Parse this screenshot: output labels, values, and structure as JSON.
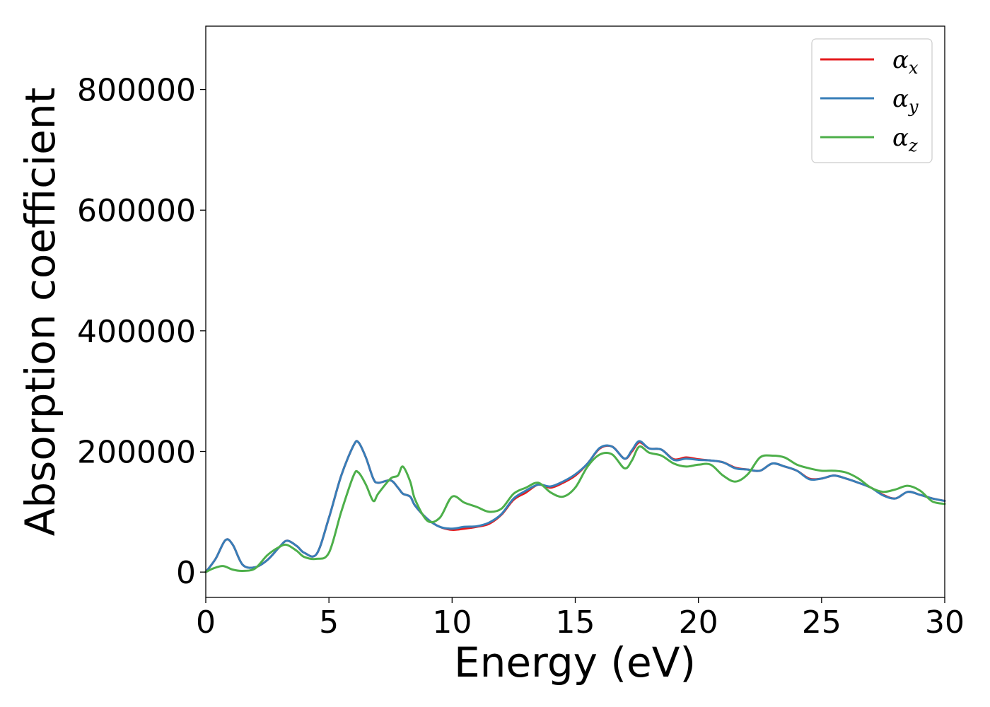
{
  "chart_data": {
    "type": "line",
    "xlabel": "Energy (eV)",
    "ylabel": "Absorption coefficient",
    "xlim": [
      0,
      30
    ],
    "ylim": [
      -42000,
      905000
    ],
    "xticks": [
      0,
      5,
      10,
      15,
      20,
      25,
      30
    ],
    "yticks": [
      0,
      200000,
      400000,
      600000,
      800000
    ],
    "xtick_labels": [
      "0",
      "5",
      "10",
      "15",
      "20",
      "25",
      "30"
    ],
    "ytick_labels": [
      "0",
      "200000",
      "400000",
      "600000",
      "800000"
    ],
    "grid": false,
    "legend_position": "top-right",
    "series": [
      {
        "name": "αx",
        "symbol": "α",
        "sub": "x",
        "color": "#e41a1c",
        "x": [
          0,
          0.4,
          0.8,
          1.1,
          1.5,
          2.0,
          2.5,
          3.0,
          3.3,
          3.7,
          4.0,
          4.5,
          5.0,
          5.5,
          6.0,
          6.2,
          6.5,
          6.8,
          7.0,
          7.5,
          7.8,
          8.0,
          8.3,
          8.5,
          9.0,
          9.5,
          10.0,
          10.5,
          11.0,
          11.5,
          12.0,
          12.5,
          13.0,
          13.5,
          14.0,
          14.5,
          15.0,
          15.5,
          16.0,
          16.5,
          17.0,
          17.3,
          17.6,
          18.0,
          18.5,
          19.0,
          19.5,
          20.0,
          20.5,
          21.0,
          21.5,
          22.0,
          22.5,
          23.0,
          23.5,
          24.0,
          24.5,
          25.0,
          25.5,
          26.0,
          26.5,
          27.0,
          27.5,
          28.0,
          28.5,
          29.0,
          29.5,
          30.0
        ],
        "y": [
          0,
          22000,
          53000,
          45000,
          12000,
          8000,
          20000,
          42000,
          52000,
          43000,
          32000,
          30000,
          90000,
          160000,
          210000,
          215000,
          190000,
          155000,
          148000,
          152000,
          140000,
          130000,
          125000,
          110000,
          88000,
          75000,
          70000,
          72000,
          75000,
          80000,
          95000,
          120000,
          132000,
          145000,
          140000,
          148000,
          160000,
          180000,
          205000,
          208000,
          188000,
          200000,
          215000,
          205000,
          203000,
          187000,
          190000,
          187000,
          185000,
          182000,
          173000,
          170000,
          168000,
          180000,
          175000,
          168000,
          155000,
          155000,
          160000,
          155000,
          148000,
          140000,
          128000,
          122000,
          133000,
          128000,
          122000,
          118000
        ]
      },
      {
        "name": "αy",
        "symbol": "α",
        "sub": "y",
        "color": "#377eb8",
        "x": [
          0,
          0.4,
          0.8,
          1.1,
          1.5,
          2.0,
          2.5,
          3.0,
          3.3,
          3.7,
          4.0,
          4.5,
          5.0,
          5.5,
          6.0,
          6.2,
          6.5,
          6.8,
          7.0,
          7.5,
          7.8,
          8.0,
          8.3,
          8.5,
          9.0,
          9.5,
          10.0,
          10.5,
          11.0,
          11.5,
          12.0,
          12.5,
          13.0,
          13.5,
          14.0,
          14.5,
          15.0,
          15.5,
          16.0,
          16.5,
          17.0,
          17.3,
          17.6,
          18.0,
          18.5,
          19.0,
          19.5,
          20.0,
          20.5,
          21.0,
          21.5,
          22.0,
          22.5,
          23.0,
          23.5,
          24.0,
          24.5,
          25.0,
          25.5,
          26.0,
          26.5,
          27.0,
          27.5,
          28.0,
          28.5,
          29.0,
          29.5,
          30.0
        ],
        "y": [
          0,
          22000,
          53000,
          45000,
          12000,
          8000,
          20000,
          42000,
          52000,
          43000,
          32000,
          30000,
          90000,
          160000,
          210000,
          215000,
          190000,
          155000,
          148000,
          152000,
          140000,
          130000,
          125000,
          110000,
          88000,
          75000,
          72000,
          75000,
          76000,
          82000,
          96000,
          122000,
          135000,
          145000,
          142000,
          150000,
          162000,
          180000,
          206000,
          208000,
          188000,
          202000,
          217000,
          205000,
          203000,
          186000,
          188000,
          186000,
          185000,
          182000,
          172000,
          170000,
          168000,
          180000,
          175000,
          168000,
          154000,
          155000,
          160000,
          155000,
          148000,
          140000,
          127000,
          122000,
          133000,
          128000,
          122000,
          118000
        ]
      },
      {
        "name": "αz",
        "symbol": "α",
        "sub": "z",
        "color": "#4daf4a",
        "x": [
          0,
          0.3,
          0.7,
          1.1,
          1.5,
          2.0,
          2.5,
          3.0,
          3.3,
          3.7,
          4.0,
          4.5,
          5.0,
          5.5,
          6.0,
          6.2,
          6.5,
          6.8,
          7.0,
          7.5,
          7.8,
          8.0,
          8.3,
          8.5,
          9.0,
          9.5,
          10.0,
          10.5,
          11.0,
          11.5,
          12.0,
          12.5,
          13.0,
          13.5,
          14.0,
          14.5,
          15.0,
          15.5,
          16.0,
          16.5,
          17.0,
          17.3,
          17.6,
          18.0,
          18.5,
          19.0,
          19.5,
          20.0,
          20.5,
          21.0,
          21.5,
          22.0,
          22.5,
          23.0,
          23.5,
          24.0,
          24.5,
          25.0,
          25.5,
          26.0,
          26.5,
          27.0,
          27.5,
          28.0,
          28.5,
          29.0,
          29.5,
          30.0
        ],
        "y": [
          0,
          6000,
          10000,
          4000,
          2000,
          6000,
          28000,
          42000,
          45000,
          35000,
          25000,
          22000,
          32000,
          100000,
          160000,
          165000,
          145000,
          118000,
          130000,
          155000,
          160000,
          175000,
          150000,
          120000,
          85000,
          90000,
          125000,
          115000,
          108000,
          100000,
          105000,
          130000,
          140000,
          148000,
          132000,
          125000,
          140000,
          175000,
          195000,
          195000,
          172000,
          185000,
          208000,
          198000,
          193000,
          180000,
          175000,
          178000,
          178000,
          160000,
          150000,
          162000,
          190000,
          193000,
          190000,
          178000,
          172000,
          168000,
          168000,
          165000,
          155000,
          140000,
          133000,
          137000,
          143000,
          135000,
          117000,
          113000
        ]
      }
    ]
  }
}
